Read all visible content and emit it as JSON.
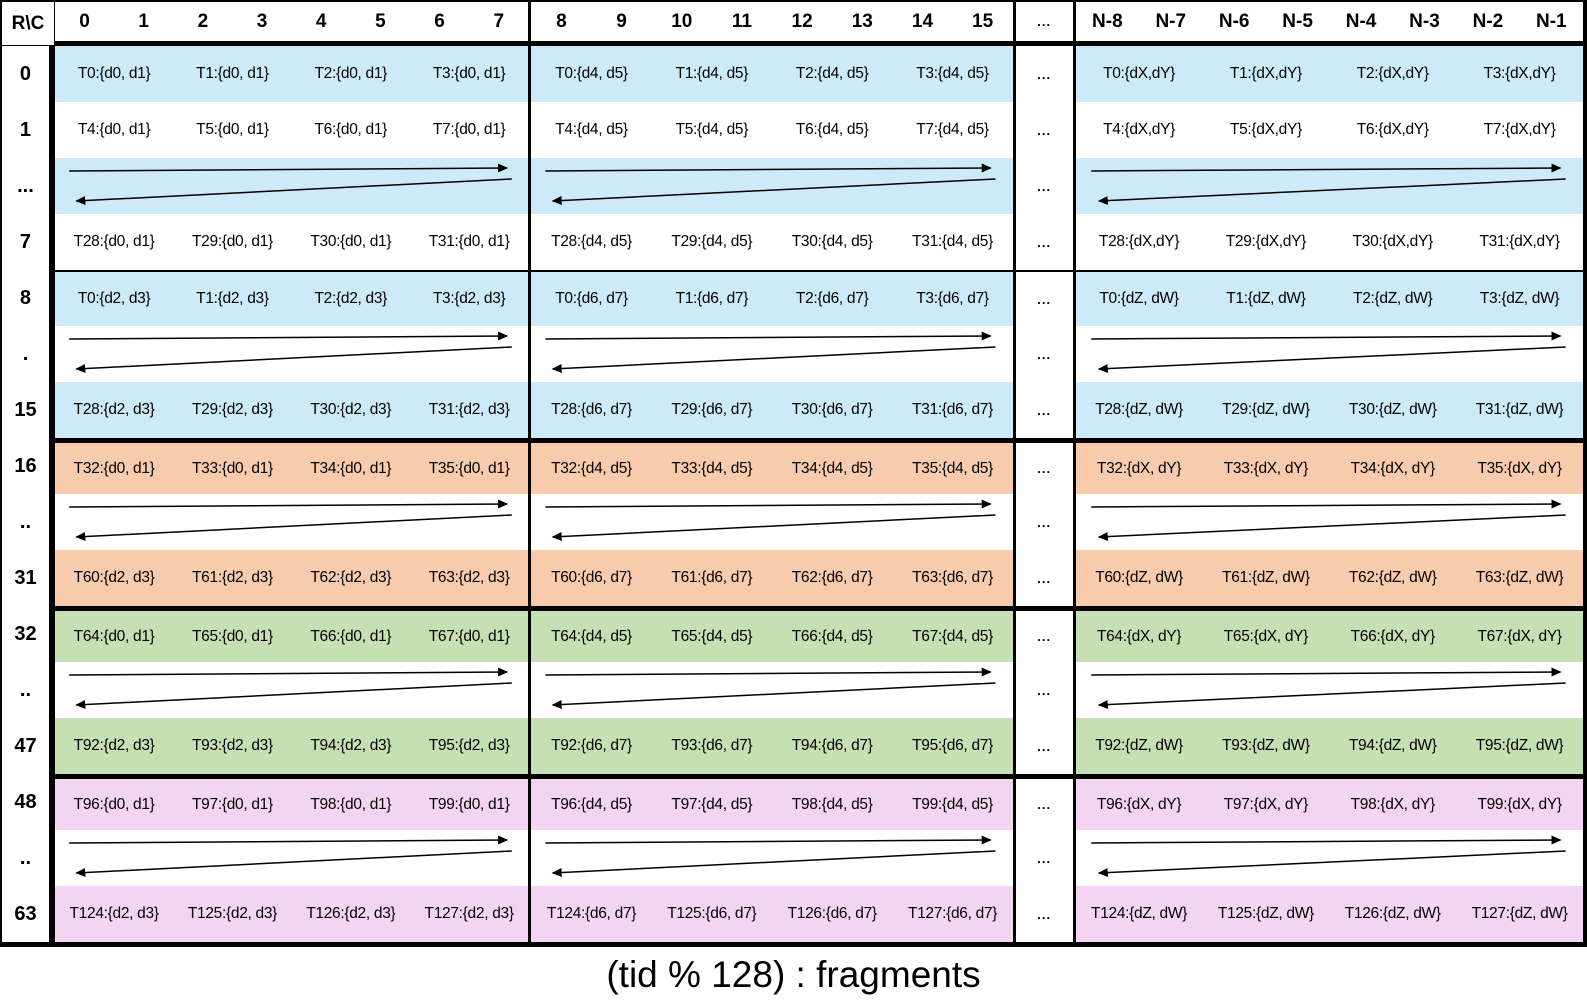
{
  "caption": "(tid % 128) : fragments",
  "colors": {
    "blue": "#cdeaf8",
    "orange": "#f8cbad",
    "green": "#c6e0b4",
    "pink": "#f3d5f1",
    "white": "transparent",
    "grid_line": "#000000"
  },
  "grid": {
    "corner": "R\\C",
    "ellipsis": "...",
    "col_headers": [
      [
        "0",
        "1",
        "2",
        "3",
        "4",
        "5",
        "6",
        "7"
      ],
      [
        "8",
        "9",
        "10",
        "11",
        "12",
        "13",
        "14",
        "15"
      ],
      [
        "N-8",
        "N-7",
        "N-6",
        "N-5",
        "N-4",
        "N-3",
        "N-2",
        "N-1"
      ]
    ],
    "rows": [
      {
        "label": "0",
        "kind": "data",
        "bg": "blue",
        "sep": "none",
        "cells": [
          [
            "T0:{d0, d1}",
            "T1:{d0, d1}",
            "T2:{d0, d1}",
            "T3:{d0, d1}"
          ],
          [
            "T0:{d4, d5}",
            "T1:{d4, d5}",
            "T2:{d4, d5}",
            "T3:{d4, d5}"
          ],
          [
            "T0:{dX,dY}",
            "T1:{dX,dY}",
            "T2:{dX,dY}",
            "T3:{dX,dY}"
          ]
        ]
      },
      {
        "label": "1",
        "kind": "data",
        "bg": "white",
        "sep": "none",
        "cells": [
          [
            "T4:{d0, d1}",
            "T5:{d0, d1}",
            "T6:{d0, d1}",
            "T7:{d0, d1}"
          ],
          [
            "T4:{d4, d5}",
            "T5:{d4, d5}",
            "T6:{d4, d5}",
            "T7:{d4, d5}"
          ],
          [
            "T4:{dX,dY}",
            "T5:{dX,dY}",
            "T6:{dX,dY}",
            "T7:{dX,dY}"
          ]
        ]
      },
      {
        "label": "...",
        "kind": "arrows",
        "bg": "blue",
        "sep": "none"
      },
      {
        "label": "7",
        "kind": "data",
        "bg": "white",
        "sep": "none",
        "cells": [
          [
            "T28:{d0, d1}",
            "T29:{d0, d1}",
            "T30:{d0, d1}",
            "T31:{d0, d1}"
          ],
          [
            "T28:{d4, d5}",
            "T29:{d4, d5}",
            "T30:{d4, d5}",
            "T31:{d4, d5}"
          ],
          [
            "T28:{dX,dY}",
            "T29:{dX,dY}",
            "T30:{dX,dY}",
            "T31:{dX,dY}"
          ]
        ]
      },
      {
        "label": "8",
        "kind": "data",
        "bg": "blue",
        "sep": "thin",
        "cells": [
          [
            "T0:{d2, d3}",
            "T1:{d2, d3}",
            "T2:{d2, d3}",
            "T3:{d2, d3}"
          ],
          [
            "T0:{d6, d7}",
            "T1:{d6, d7}",
            "T2:{d6, d7}",
            "T3:{d6, d7}"
          ],
          [
            "T0:{dZ, dW}",
            "T1:{dZ, dW}",
            "T2:{dZ, dW}",
            "T3:{dZ, dW}"
          ]
        ]
      },
      {
        "label": ".",
        "kind": "arrows",
        "bg": "white",
        "sep": "none"
      },
      {
        "label": "15",
        "kind": "data",
        "bg": "blue",
        "sep": "none",
        "cells": [
          [
            "T28:{d2, d3}",
            "T29:{d2, d3}",
            "T30:{d2, d3}",
            "T31:{d2, d3}"
          ],
          [
            "T28:{d6, d7}",
            "T29:{d6, d7}",
            "T30:{d6, d7}",
            "T31:{d6, d7}"
          ],
          [
            "T28:{dZ, dW}",
            "T29:{dZ, dW}",
            "T30:{dZ, dW}",
            "T31:{dZ, dW}"
          ]
        ]
      },
      {
        "label": "16",
        "kind": "data",
        "bg": "orange",
        "sep": "thick",
        "cells": [
          [
            "T32:{d0, d1}",
            "T33:{d0, d1}",
            "T34:{d0, d1}",
            "T35:{d0, d1}"
          ],
          [
            "T32:{d4, d5}",
            "T33:{d4, d5}",
            "T34:{d4, d5}",
            "T35:{d4, d5}"
          ],
          [
            "T32:{dX, dY}",
            "T33:{dX, dY}",
            "T34:{dX, dY}",
            "T35:{dX, dY}"
          ]
        ]
      },
      {
        "label": "..",
        "kind": "arrows",
        "bg": "white",
        "sep": "none"
      },
      {
        "label": "31",
        "kind": "data",
        "bg": "orange",
        "sep": "none",
        "cells": [
          [
            "T60:{d2, d3}",
            "T61:{d2, d3}",
            "T62:{d2, d3}",
            "T63:{d2, d3}"
          ],
          [
            "T60:{d6, d7}",
            "T61:{d6, d7}",
            "T62:{d6, d7}",
            "T63:{d6, d7}"
          ],
          [
            "T60:{dZ, dW}",
            "T61:{dZ, dW}",
            "T62:{dZ, dW}",
            "T63:{dZ, dW}"
          ]
        ]
      },
      {
        "label": "32",
        "kind": "data",
        "bg": "green",
        "sep": "thick",
        "cells": [
          [
            "T64:{d0, d1}",
            "T65:{d0, d1}",
            "T66:{d0, d1}",
            "T67:{d0, d1}"
          ],
          [
            "T64:{d4, d5}",
            "T65:{d4, d5}",
            "T66:{d4, d5}",
            "T67:{d4, d5}"
          ],
          [
            "T64:{dX, dY}",
            "T65:{dX, dY}",
            "T66:{dX, dY}",
            "T67:{dX, dY}"
          ]
        ]
      },
      {
        "label": "..",
        "kind": "arrows",
        "bg": "white",
        "sep": "none"
      },
      {
        "label": "47",
        "kind": "data",
        "bg": "green",
        "sep": "none",
        "cells": [
          [
            "T92:{d2, d3}",
            "T93:{d2, d3}",
            "T94:{d2, d3}",
            "T95:{d2, d3}"
          ],
          [
            "T92:{d6, d7}",
            "T93:{d6, d7}",
            "T94:{d6, d7}",
            "T95:{d6, d7}"
          ],
          [
            "T92:{dZ, dW}",
            "T93:{dZ, dW}",
            "T94:{dZ, dW}",
            "T95:{dZ, dW}"
          ]
        ]
      },
      {
        "label": "48",
        "kind": "data",
        "bg": "pink",
        "sep": "thick",
        "cells": [
          [
            "T96:{d0, d1}",
            "T97:{d0, d1}",
            "T98:{d0, d1}",
            "T99:{d0, d1}"
          ],
          [
            "T96:{d4, d5}",
            "T97:{d4, d5}",
            "T98:{d4, d5}",
            "T99:{d4, d5}"
          ],
          [
            "T96:{dX, dY}",
            "T97:{dX, dY}",
            "T98:{dX, dY}",
            "T99:{dX, dY}"
          ]
        ]
      },
      {
        "label": "..",
        "kind": "arrows",
        "bg": "white",
        "sep": "none"
      },
      {
        "label": "63",
        "kind": "data",
        "bg": "pink",
        "sep": "none",
        "cells": [
          [
            "T124:{d2, d3}",
            "T125:{d2, d3}",
            "T126:{d2, d3}",
            "T127:{d2, d3}"
          ],
          [
            "T124:{d6, d7}",
            "T125:{d6, d7}",
            "T126:{d6, d7}",
            "T127:{d6, d7}"
          ],
          [
            "T124:{dZ, dW}",
            "T125:{dZ, dW}",
            "T126:{dZ, dW}",
            "T127:{dZ, dW}"
          ]
        ]
      }
    ]
  }
}
